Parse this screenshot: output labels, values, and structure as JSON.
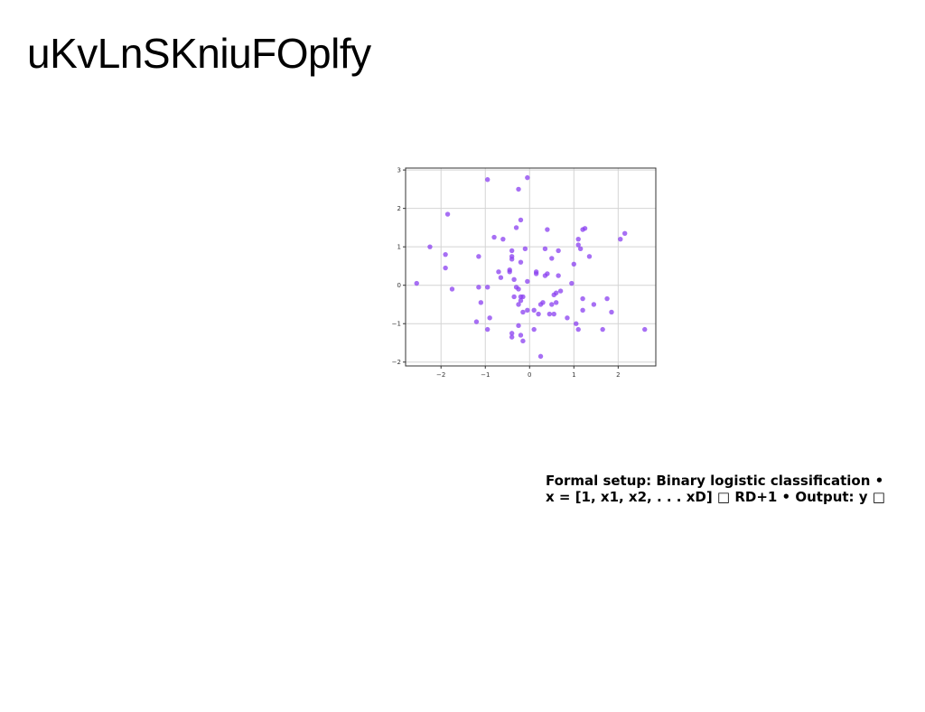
{
  "slide": {
    "title": "uKvLnSKniuFOplfy",
    "caption_lines": [
      "Formal setup: Binary logistic classification •",
      "x = [1, x1, x2, . . . xD] □ RD+1 • Output: y □"
    ]
  },
  "chart_data": {
    "type": "scatter",
    "title": "",
    "xlabel": "",
    "ylabel": "",
    "xlim": [
      -2.8,
      2.85
    ],
    "ylim": [
      -2.1,
      3.05
    ],
    "xticks": [
      -2,
      -1,
      0,
      1,
      2
    ],
    "yticks": [
      -2,
      -1,
      0,
      1,
      2,
      3
    ],
    "grid": true,
    "color": "#8a3ff0",
    "x": [
      -0.05,
      -0.95,
      -0.25,
      -1.85,
      -0.3,
      -0.4,
      0.4,
      1.2,
      1.25,
      2.15,
      2.05,
      -2.25,
      -0.8,
      -0.6,
      1.1,
      1.15,
      1.1,
      0.35,
      0.65,
      -1.9,
      -1.15,
      -0.4,
      -0.4,
      -0.2,
      0.5,
      1.35,
      -1.9,
      -0.45,
      -0.45,
      -0.7,
      0.15,
      0.4,
      0.35,
      -0.65,
      -0.35,
      -0.05,
      0.65,
      0.95,
      1.0,
      -2.55,
      -1.75,
      -1.15,
      -0.95,
      -0.3,
      -0.25,
      -0.15,
      -0.2,
      -0.2,
      -0.35,
      0.6,
      0.55,
      0.7,
      1.2,
      1.75,
      -1.1,
      -0.25,
      0.25,
      0.3,
      0.5,
      0.6,
      1.45,
      -0.15,
      -0.05,
      0.1,
      0.2,
      0.45,
      0.55,
      0.85,
      1.05,
      1.1,
      1.65,
      1.85,
      1.2,
      -1.2,
      -0.95,
      -0.9,
      -0.25,
      -0.4,
      -0.2,
      -0.4,
      -0.15,
      0.25,
      2.6,
      0.1,
      0.15,
      -0.2,
      -0.1
    ],
    "y": [
      2.8,
      2.75,
      2.5,
      1.85,
      1.5,
      0.9,
      1.45,
      1.45,
      1.48,
      1.35,
      1.2,
      1.0,
      1.25,
      1.2,
      1.2,
      0.95,
      1.05,
      0.95,
      0.9,
      0.8,
      0.75,
      0.75,
      0.68,
      0.6,
      0.7,
      0.75,
      0.45,
      0.4,
      0.35,
      0.35,
      0.3,
      0.3,
      0.25,
      0.2,
      0.15,
      0.1,
      0.25,
      0.05,
      0.55,
      0.05,
      -0.1,
      -0.05,
      -0.05,
      -0.05,
      -0.1,
      -0.3,
      -0.3,
      -0.4,
      -0.3,
      -0.2,
      -0.25,
      -0.15,
      -0.35,
      -0.35,
      -0.45,
      -0.5,
      -0.5,
      -0.45,
      -0.5,
      -0.45,
      -0.5,
      -0.7,
      -0.65,
      -0.65,
      -0.75,
      -0.75,
      -0.75,
      -0.85,
      -1.0,
      -1.15,
      -1.15,
      -0.7,
      -0.65,
      -0.95,
      -1.15,
      -0.85,
      -1.05,
      -1.25,
      -1.3,
      -1.35,
      -1.45,
      -1.85,
      -1.15,
      -1.15,
      0.35,
      1.7,
      0.95
    ]
  }
}
